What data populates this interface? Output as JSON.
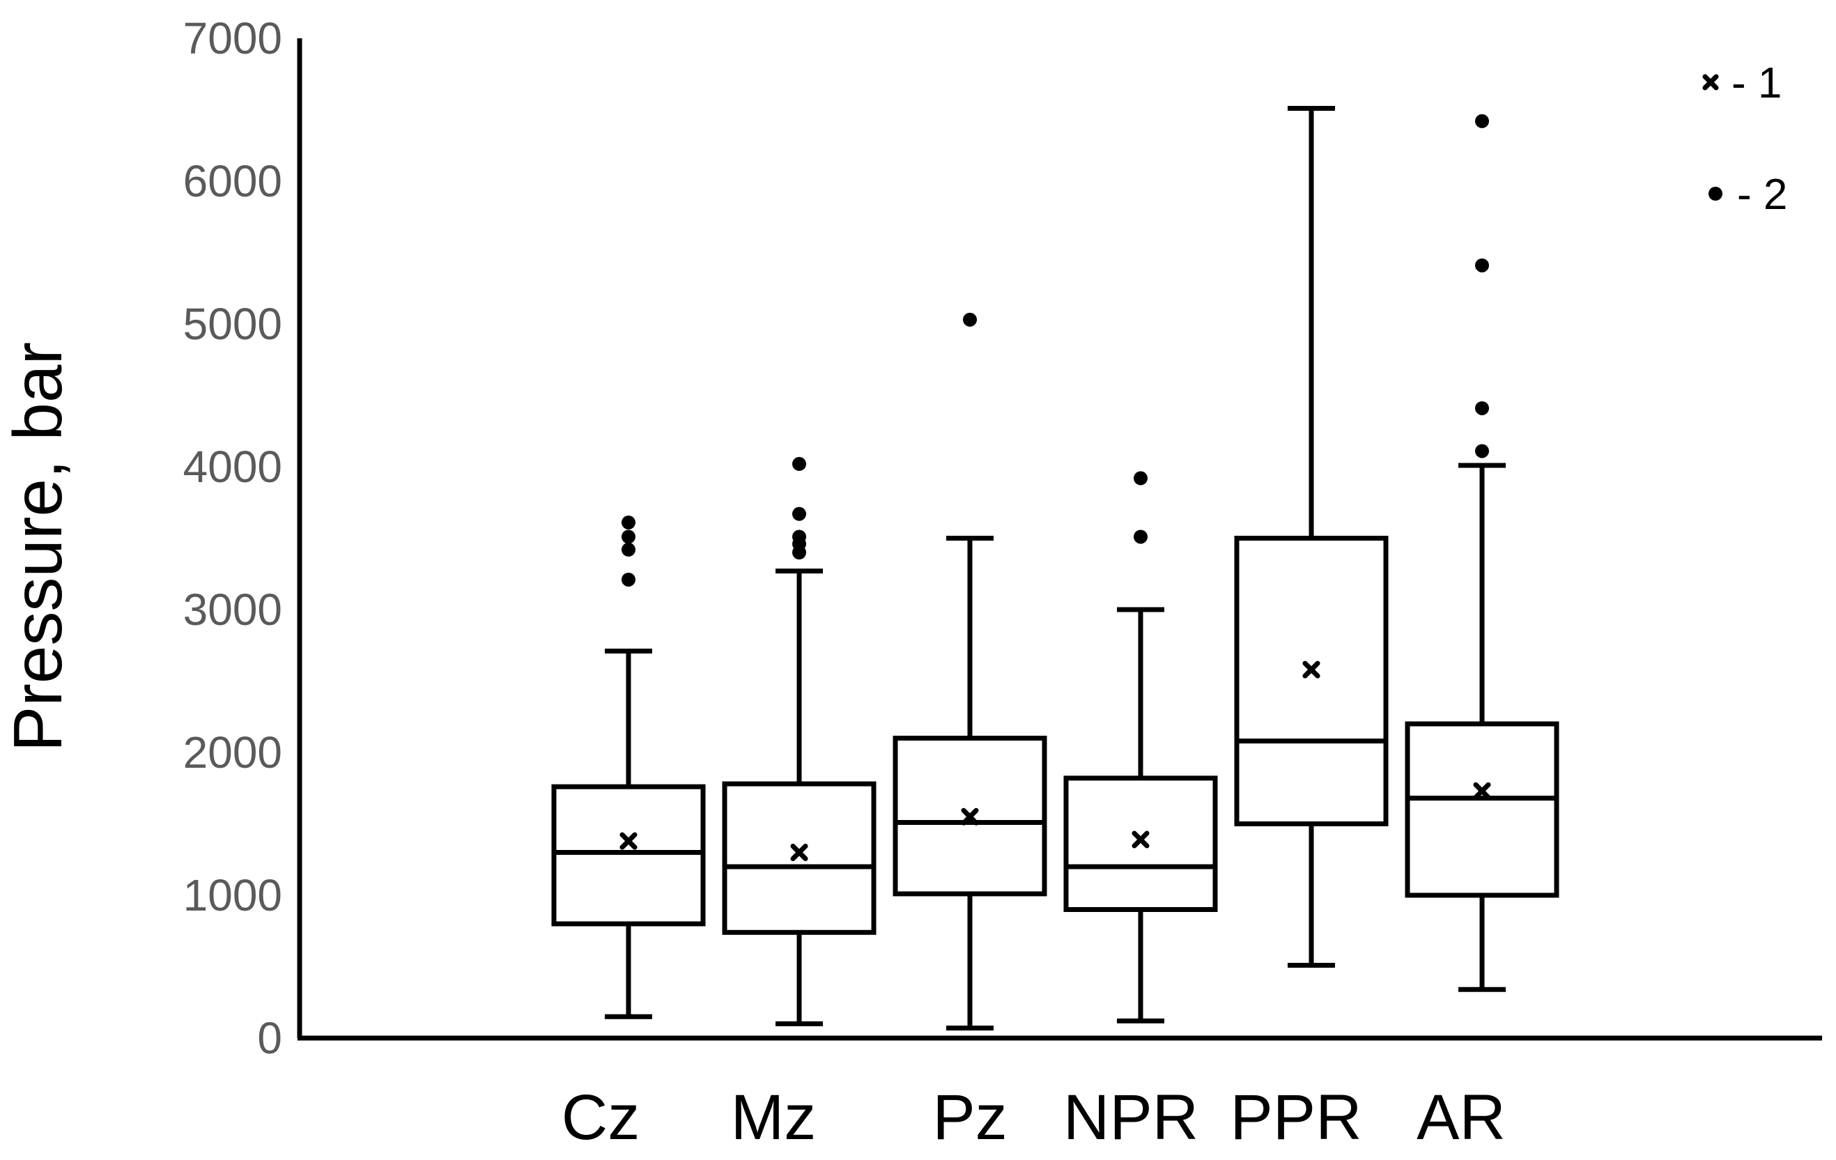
{
  "chart_data": {
    "type": "box",
    "ylabel": "Pressure, bar",
    "xlabel": "",
    "ylim": [
      0,
      7000
    ],
    "yticks": [
      "0",
      "1000",
      "2000",
      "3000",
      "4000",
      "5000",
      "6000",
      "7000"
    ],
    "grid": false,
    "legend_position": "top-right",
    "legend": [
      {
        "marker": "x",
        "label": "- 1"
      },
      {
        "marker": "dot",
        "label": "- 2"
      }
    ],
    "categories": [
      "Cz",
      "Mz",
      "Pz",
      "NPR",
      "PPR",
      "AR"
    ],
    "boxes": [
      {
        "name": "Cz",
        "whisker_low": 150,
        "q1": 800,
        "median": 1300,
        "q3": 1760,
        "whisker_high": 2710,
        "mean": 1380,
        "outliers": [
          3210,
          3420,
          3510,
          3610
        ]
      },
      {
        "name": "Mz",
        "whisker_low": 100,
        "q1": 740,
        "median": 1200,
        "q3": 1780,
        "whisker_high": 3270,
        "mean": 1300,
        "outliers": [
          3400,
          3460,
          3510,
          3670,
          4020
        ]
      },
      {
        "name": "Pz",
        "whisker_low": 70,
        "q1": 1010,
        "median": 1510,
        "q3": 2100,
        "whisker_high": 3500,
        "mean": 1550,
        "outliers": [
          5030
        ]
      },
      {
        "name": "NPR",
        "whisker_low": 120,
        "q1": 900,
        "median": 1200,
        "q3": 1820,
        "whisker_high": 3000,
        "mean": 1390,
        "outliers": [
          3510,
          3920
        ]
      },
      {
        "name": "PPR",
        "whisker_low": 510,
        "q1": 1500,
        "median": 2080,
        "q3": 3500,
        "whisker_high": 6510,
        "mean": 2580,
        "outliers": []
      },
      {
        "name": "AR",
        "whisker_low": 340,
        "q1": 1000,
        "median": 1680,
        "q3": 2200,
        "whisker_high": 4010,
        "mean": 1730,
        "outliers": [
          4110,
          4410,
          5410,
          6420
        ]
      }
    ]
  },
  "colors": {
    "ink": "#000000",
    "tick_text": "#5a5a5a",
    "background": "#ffffff"
  }
}
